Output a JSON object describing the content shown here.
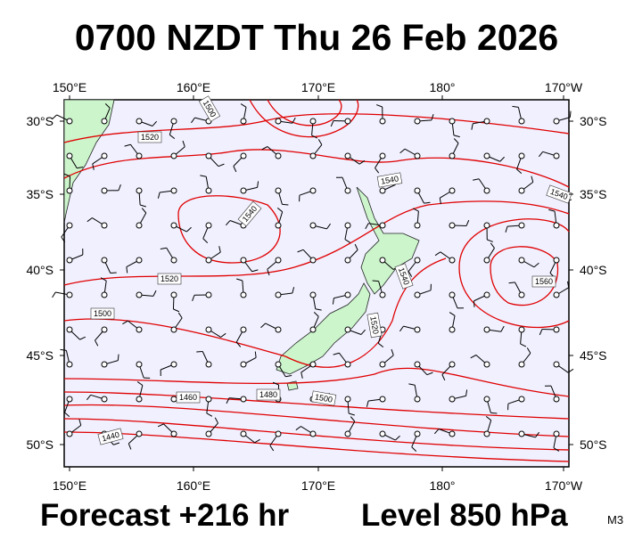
{
  "header": {
    "title": "0700 NZDT Thu 26 Feb 2026"
  },
  "map": {
    "top_labels": [
      "150°E",
      "160°E",
      "170°E",
      "180°",
      "170°W"
    ],
    "bottom_labels": [
      "150°E",
      "160°E",
      "170°E",
      "180°",
      "170°W"
    ],
    "left_labels": [
      "30°S",
      "35°S",
      "40°S",
      "45°S",
      "50°S"
    ],
    "right_labels": [
      "30°S",
      "35°S",
      "40°S",
      "45°S",
      "50°S"
    ],
    "contour_labels": [
      "1500",
      "1520",
      "1540",
      "1540",
      "1540",
      "1520",
      "1500",
      "1560",
      "1540",
      "1520",
      "1500",
      "1480",
      "1460",
      "1440"
    ]
  },
  "footer": {
    "forecast": "Forecast +216 hr",
    "level": "Level 850 hPa",
    "model": "M3"
  }
}
